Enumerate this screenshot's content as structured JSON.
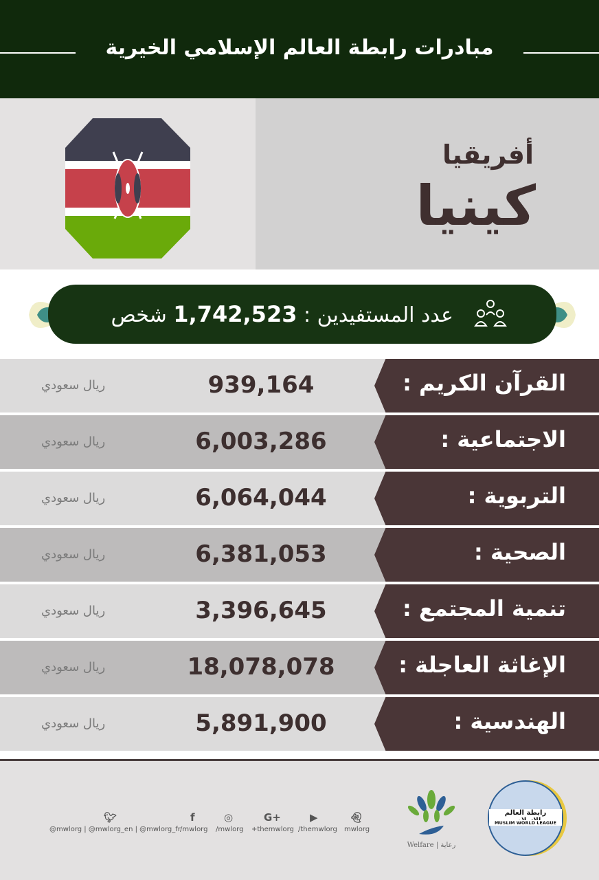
{
  "header": {
    "title": "مبادرات رابطة العالم الإسلامي الخيرية"
  },
  "country": {
    "region": "أفريقيا",
    "name": "كينيا"
  },
  "colors": {
    "header": "#10290c",
    "label_box": "#4a3637",
    "flag_black": "#3f3f4f",
    "flag_red": "#c6414b",
    "flag_green": "#6aaa0a"
  },
  "beneficiaries": {
    "label": "عدد المستفيدين :",
    "value": "1,742,523",
    "unit": "شخص",
    "icon": "people-group-icon"
  },
  "rows": [
    {
      "label": "القرآن الكريم :",
      "value": "939,164",
      "currency": "ريال سعودي"
    },
    {
      "label": "الاجتماعية :",
      "value": "6,003,286",
      "currency": "ريال سعودي"
    },
    {
      "label": "التربوية :",
      "value": "6,064,044",
      "currency": "ريال سعودي"
    },
    {
      "label": "الصحية :",
      "value": "6,381,053",
      "currency": "ريال سعودي"
    },
    {
      "label": "تنمية المجتمع :",
      "value": "3,396,645",
      "currency": "ريال سعودي"
    },
    {
      "label": "الإغاثة العاجلة :",
      "value": "18,078,078",
      "currency": "ريال سعودي"
    },
    {
      "label": "الهندسية :",
      "value": "5,891,900",
      "currency": "ريال سعودي"
    }
  ],
  "footer": {
    "twitter": "@mwlorg | @mwlorg_en | @mwlorg_fr",
    "facebook": "/mwlorg",
    "instagram": "/mwlorg",
    "googleplus": "+themwlorg",
    "youtube": "/themwlorg",
    "snapchat": "mwlorg",
    "welfare_logo": "Welfare | رعاية",
    "mwl_logo_ar": "رابطة العالم الإسلامي",
    "mwl_logo_en": "MUSLIM WORLD LEAGUE"
  }
}
